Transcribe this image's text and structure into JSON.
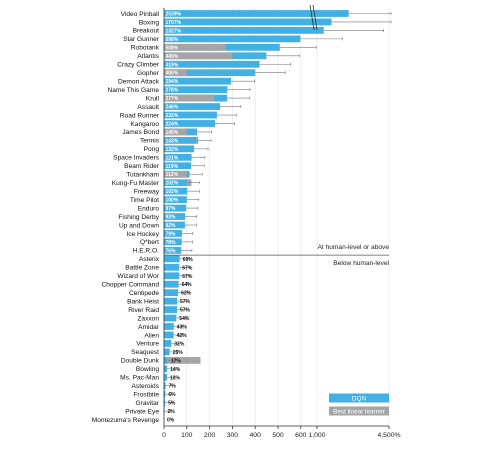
{
  "chart_data": {
    "type": "bar",
    "orientation": "horizontal",
    "title": "",
    "xlabel": "",
    "ylabel": "",
    "x_axis": {
      "ticks": [
        "0",
        "100",
        "200",
        "300",
        "400",
        "500",
        "600",
        "1,000",
        "4,500%"
      ],
      "tick_values": [
        0,
        100,
        200,
        300,
        400,
        500,
        600,
        1000,
        4500
      ],
      "broken": true
    },
    "games": [
      {
        "name": "Video Pinball",
        "dqn": 2539,
        "linear": 0,
        "label": "2539%"
      },
      {
        "name": "Boxing",
        "dqn": 1707,
        "linear": 0,
        "label": "1707%"
      },
      {
        "name": "Breakout",
        "dqn": 1327,
        "linear": 0,
        "label": "1327%"
      },
      {
        "name": "Star Gunner",
        "dqn": 598,
        "linear": 0,
        "label": "598%"
      },
      {
        "name": "Robotank",
        "dqn": 508,
        "linear": 270,
        "label": "508%"
      },
      {
        "name": "Atlantis",
        "dqn": 449,
        "linear": 300,
        "label": "449%"
      },
      {
        "name": "Crazy Climber",
        "dqn": 419,
        "linear": 0,
        "label": "419%"
      },
      {
        "name": "Gopher",
        "dqn": 400,
        "linear": 100,
        "label": "400%"
      },
      {
        "name": "Demon Attack",
        "dqn": 294,
        "linear": 0,
        "label": "294%"
      },
      {
        "name": "Name This Game",
        "dqn": 278,
        "linear": 0,
        "label": "278%"
      },
      {
        "name": "Krull",
        "dqn": 277,
        "linear": 220,
        "label": "277%"
      },
      {
        "name": "Assault",
        "dqn": 246,
        "linear": 0,
        "label": "246%"
      },
      {
        "name": "Road Runner",
        "dqn": 232,
        "linear": 0,
        "label": "232%"
      },
      {
        "name": "Kangaroo",
        "dqn": 224,
        "linear": 0,
        "label": "224%"
      },
      {
        "name": "James Bond",
        "dqn": 145,
        "linear": 100,
        "label": "145%"
      },
      {
        "name": "Tennis",
        "dqn": 143,
        "linear": 150,
        "label": "143%"
      },
      {
        "name": "Pong",
        "dqn": 132,
        "linear": 0,
        "label": "132%"
      },
      {
        "name": "Space Invaders",
        "dqn": 121,
        "linear": 0,
        "label": "121%"
      },
      {
        "name": "Beam Rider",
        "dqn": 119,
        "linear": 0,
        "label": "119%"
      },
      {
        "name": "Tutankham",
        "dqn": 112,
        "linear": 100,
        "label": "112%"
      },
      {
        "name": "Kung-Fu Master",
        "dqn": 102,
        "linear": 120,
        "label": "102%"
      },
      {
        "name": "Freeway",
        "dqn": 102,
        "linear": 0,
        "label": "102%"
      },
      {
        "name": "Time Pilot",
        "dqn": 100,
        "linear": 0,
        "label": "100%"
      },
      {
        "name": "Enduro",
        "dqn": 97,
        "linear": 0,
        "label": "97%"
      },
      {
        "name": "Fishing Derby",
        "dqn": 93,
        "linear": 0,
        "label": "93%"
      },
      {
        "name": "Up and Down",
        "dqn": 92,
        "linear": 0,
        "label": "92%"
      },
      {
        "name": "Ice Hockey",
        "dqn": 79,
        "linear": 0,
        "label": "79%"
      },
      {
        "name": "Q*bert",
        "dqn": 78,
        "linear": 0,
        "label": "78%"
      },
      {
        "name": "H.E.R.O.",
        "dqn": 76,
        "linear": 0,
        "label": "76%"
      },
      {
        "name": "Asterix",
        "dqn": 69,
        "linear": 0,
        "label": "69%"
      },
      {
        "name": "Battle Zone",
        "dqn": 67,
        "linear": 0,
        "label": "67%"
      },
      {
        "name": "Wizard of Wor",
        "dqn": 67,
        "linear": 0,
        "label": "67%"
      },
      {
        "name": "Chopper Command",
        "dqn": 64,
        "linear": 0,
        "label": "64%"
      },
      {
        "name": "Centipede",
        "dqn": 62,
        "linear": 0,
        "label": "62%"
      },
      {
        "name": "Bank Heist",
        "dqn": 57,
        "linear": 0,
        "label": "57%"
      },
      {
        "name": "River Raid",
        "dqn": 57,
        "linear": 0,
        "label": "57%"
      },
      {
        "name": "Zaxxon",
        "dqn": 54,
        "linear": 0,
        "label": "54%"
      },
      {
        "name": "Amidar",
        "dqn": 43,
        "linear": 0,
        "label": "43%"
      },
      {
        "name": "Alien",
        "dqn": 42,
        "linear": 0,
        "label": "42%"
      },
      {
        "name": "Venture",
        "dqn": 32,
        "linear": 0,
        "label": "32%"
      },
      {
        "name": "Seaquest",
        "dqn": 25,
        "linear": 0,
        "label": "25%"
      },
      {
        "name": "Double Dunk",
        "dqn": 17,
        "linear": 160,
        "label": "17%"
      },
      {
        "name": "Bowling",
        "dqn": 14,
        "linear": 0,
        "label": "14%"
      },
      {
        "name": "Ms. Pac-Man",
        "dqn": 13,
        "linear": 0,
        "label": "13%"
      },
      {
        "name": "Asteroids",
        "dqn": 7,
        "linear": 0,
        "label": "7%"
      },
      {
        "name": "Frostbite",
        "dqn": 6,
        "linear": 0,
        "label": "6%"
      },
      {
        "name": "Gravitar",
        "dqn": 5,
        "linear": 0,
        "label": "5%"
      },
      {
        "name": "Private Eye",
        "dqn": 2,
        "linear": 0,
        "label": "2%"
      },
      {
        "name": "Montezuma's Revenge",
        "dqn": 0,
        "linear": 0,
        "label": "0%"
      }
    ],
    "threshold": {
      "value": 75,
      "label_above": "At human-level or above",
      "label_below": "Below human-level"
    },
    "legend": {
      "position": "bottom-right",
      "entries": [
        {
          "name": "DQN",
          "color": "#42B0E3"
        },
        {
          "name": "Best linear learner",
          "color": "#A5A5A5"
        }
      ]
    },
    "colors": {
      "dqn": "#42B0E3",
      "linear": "#A5A5A5",
      "error_bar": "#777777",
      "axis": "#333333",
      "grid": "#e5e5e5",
      "threshold_line": "#555555"
    }
  }
}
